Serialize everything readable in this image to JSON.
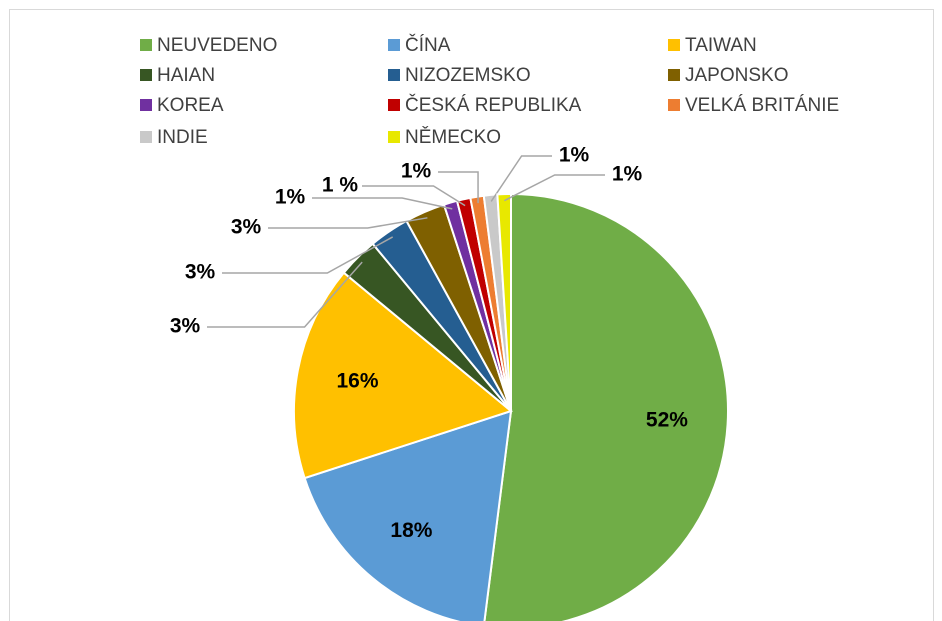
{
  "chart_data": {
    "type": "pie",
    "categories": [
      "NEUVEDENO",
      "ČÍNA",
      "TAIWAN",
      "HAIAN",
      "NIZOZEMSKO",
      "JAPONSKO",
      "KOREA",
      "ČESKÁ REPUBLIKA",
      "VELKÁ BRITÁNIE",
      "INDIE",
      "NĚMECKO"
    ],
    "values": [
      52,
      18,
      16,
      3,
      3,
      3,
      1,
      1,
      1,
      1,
      1
    ],
    "value_labels": [
      "52%",
      "18%",
      "16%",
      "3%",
      "3%",
      "3%",
      "1%",
      "1 %",
      "1%",
      "1%",
      "1%"
    ],
    "colors": [
      "#70ad47",
      "#5b9bd5",
      "#ffc000",
      "#375623",
      "#255e91",
      "#7f6000",
      "#7030a0",
      "#c00000",
      "#ed7d31",
      "#c9c9c9",
      "#e8e800"
    ]
  }
}
